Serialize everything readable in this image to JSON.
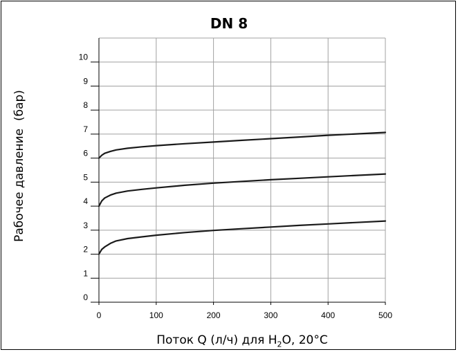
{
  "chart_data": {
    "type": "line",
    "title": "DN 8",
    "ylabel": "Рабочее давление  (бар)",
    "xlabel": {
      "prefix": "Поток Q (л/ч) для H",
      "sub": "2",
      "suffix": "O, 20°C"
    },
    "xlim": [
      0,
      500
    ],
    "ylim": [
      0,
      11
    ],
    "xticks": [
      0,
      100,
      200,
      300,
      400,
      500
    ],
    "yticks": [
      0,
      1,
      2,
      3,
      4,
      5,
      6,
      7,
      8,
      9,
      10
    ],
    "grid": true,
    "series": [
      {
        "x": [
          0,
          5,
          10,
          20,
          30,
          50,
          75,
          100,
          150,
          200,
          250,
          300,
          350,
          400,
          450,
          500
        ],
        "values": [
          2.0,
          2.2,
          2.3,
          2.45,
          2.55,
          2.65,
          2.72,
          2.79,
          2.9,
          2.99,
          3.06,
          3.13,
          3.2,
          3.26,
          3.32,
          3.38
        ]
      },
      {
        "x": [
          0,
          5,
          10,
          20,
          30,
          50,
          75,
          100,
          150,
          200,
          250,
          300,
          350,
          400,
          450,
          500
        ],
        "values": [
          4.0,
          4.22,
          4.34,
          4.46,
          4.54,
          4.63,
          4.7,
          4.76,
          4.87,
          4.96,
          5.03,
          5.1,
          5.16,
          5.22,
          5.28,
          5.34
        ]
      },
      {
        "x": [
          0,
          5,
          10,
          20,
          30,
          50,
          75,
          100,
          150,
          200,
          250,
          300,
          350,
          400,
          450,
          500
        ],
        "values": [
          6.0,
          6.12,
          6.2,
          6.28,
          6.34,
          6.41,
          6.47,
          6.52,
          6.6,
          6.67,
          6.74,
          6.81,
          6.88,
          6.95,
          7.01,
          7.07
        ]
      }
    ],
    "colors": {
      "line": "#1a1a1a",
      "grid": "#a0a0a0",
      "axis": "#000000"
    }
  }
}
